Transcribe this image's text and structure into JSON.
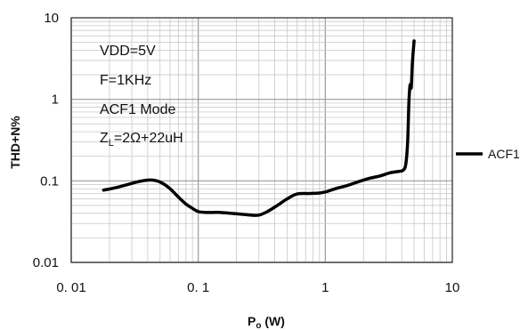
{
  "chart_data": {
    "type": "line",
    "title": "",
    "xlabel_main": "P",
    "xlabel_sub": "o",
    "xlabel_unit": " (W)",
    "ylabel": "THD+N%",
    "x_scale": "log",
    "y_scale": "log",
    "xlim": [
      0.01,
      10
    ],
    "ylim": [
      0.01,
      10
    ],
    "x_ticks": [
      {
        "value": 0.01,
        "label": "0. 01"
      },
      {
        "value": 0.1,
        "label": "0. 1"
      },
      {
        "value": 1,
        "label": "1"
      },
      {
        "value": 10,
        "label": "10"
      }
    ],
    "y_ticks": [
      {
        "value": 10,
        "label": "10"
      },
      {
        "value": 1,
        "label": "1"
      },
      {
        "value": 0.1,
        "label": "0.1"
      },
      {
        "value": 0.01,
        "label": "0.01"
      }
    ],
    "grid": true,
    "legend_position": "right",
    "annotations": {
      "line1": "VDD=5V",
      "line2": "F=1KHz",
      "line3": "ACF1 Mode",
      "line4_main": "Z",
      "line4_sub": "L",
      "line4_rest": "=2Ω+22uH"
    },
    "series": [
      {
        "name": "ACF1",
        "color": "#000000",
        "x": [
          0.018,
          0.022,
          0.027,
          0.033,
          0.04,
          0.046,
          0.052,
          0.06,
          0.07,
          0.08,
          0.09,
          0.1,
          0.115,
          0.13,
          0.15,
          0.18,
          0.22,
          0.26,
          0.3,
          0.35,
          0.42,
          0.5,
          0.6,
          0.75,
          0.9,
          1.0,
          1.2,
          1.5,
          1.8,
          2.2,
          2.7,
          3.2,
          3.7,
          4.1,
          4.3,
          4.45,
          4.55,
          4.65,
          4.75,
          4.85,
          5.0
        ],
        "y": [
          0.077,
          0.082,
          0.089,
          0.097,
          0.102,
          0.101,
          0.094,
          0.08,
          0.063,
          0.052,
          0.046,
          0.042,
          0.041,
          0.041,
          0.041,
          0.04,
          0.039,
          0.038,
          0.038,
          0.042,
          0.05,
          0.06,
          0.069,
          0.07,
          0.071,
          0.073,
          0.08,
          0.088,
          0.097,
          0.107,
          0.115,
          0.125,
          0.13,
          0.135,
          0.16,
          0.3,
          0.9,
          1.5,
          1.4,
          2.8,
          5.2
        ]
      }
    ]
  }
}
